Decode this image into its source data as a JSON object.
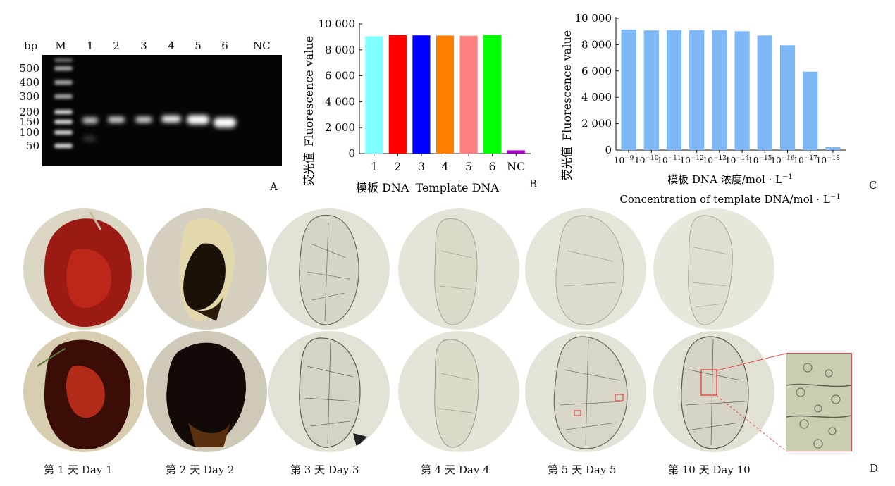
{
  "panel_a": {
    "letter": "A",
    "bp_label": "bp",
    "lanes": [
      "M",
      "1",
      "2",
      "3",
      "4",
      "5",
      "6",
      "NC"
    ],
    "ladder": [
      "500",
      "400",
      "300",
      "200",
      "150",
      "100",
      "50"
    ]
  },
  "panel_b": {
    "letter": "B",
    "ylabel_cn": "荧光值",
    "ylabel_en": "Fluorescence  value",
    "xlabel_cn": "模板 DNA",
    "xlabel_en": "Template  DNA"
  },
  "panel_c": {
    "letter": "C",
    "ylabel_cn": "荧光值",
    "ylabel_en": "Fluorescence  value",
    "xlabel_cn": "模板 DNA 浓度/mol · L",
    "xlabel_cn_sup": "−1",
    "xlabel_en": "Concentration  of  template  DNA/mol · L",
    "xlabel_en_sup": "−1"
  },
  "panel_d": {
    "letter": "D",
    "captions": [
      "第 1 天   Day  1",
      "第 2 天   Day  2",
      "第 3 天   Day  3",
      "第 4 天   Day  4",
      "第 5 天   Day  5",
      "第 10 天   Day  10"
    ]
  },
  "chart_data": [
    {
      "type": "bar",
      "panel": "B",
      "categories": [
        "1",
        "2",
        "3",
        "4",
        "5",
        "6",
        "NC"
      ],
      "values": [
        9050,
        9150,
        9120,
        9110,
        9090,
        9150,
        250
      ],
      "colors": [
        "#80ffff",
        "#ff0000",
        "#0000ff",
        "#ff8000",
        "#ff8080",
        "#00ff00",
        "#a000c0"
      ],
      "ylim": [
        0,
        10000
      ],
      "yticks": [
        "0",
        "2 000",
        "4 000",
        "6 000",
        "8 000",
        "10 000"
      ]
    },
    {
      "type": "bar",
      "panel": "C",
      "categories": [
        "10−9",
        "10−10",
        "10−11",
        "10−12",
        "10−13",
        "10−14",
        "10−15",
        "10−16",
        "10−17",
        "10−18"
      ],
      "values": [
        9150,
        9080,
        9100,
        9100,
        9100,
        9020,
        8700,
        7950,
        5950,
        220
      ],
      "color": "#7eb8f7",
      "ylim": [
        0,
        10000
      ],
      "yticks": [
        "0",
        "2 000",
        "4 000",
        "6 000",
        "8 000",
        "10 000"
      ]
    }
  ]
}
